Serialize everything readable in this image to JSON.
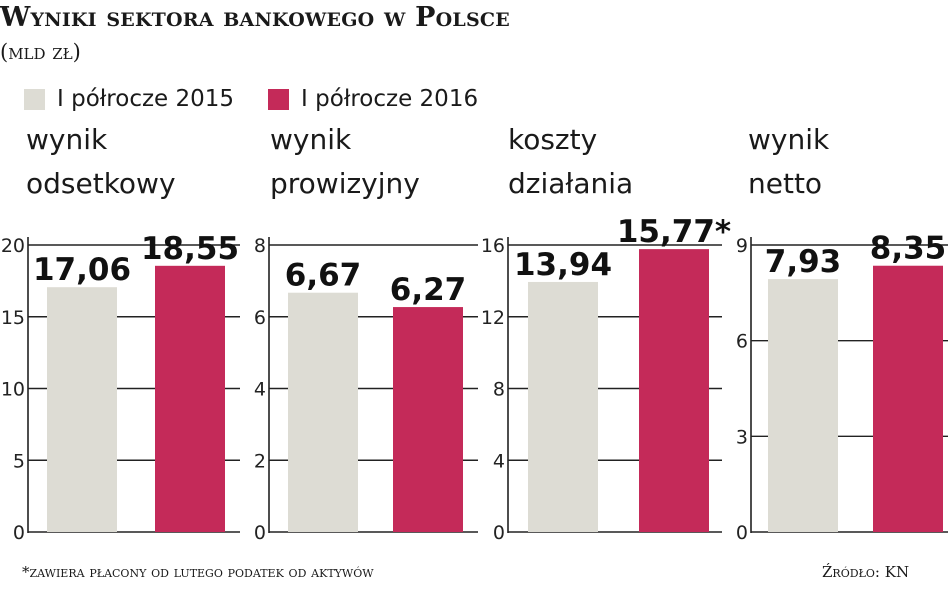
{
  "header": {
    "title": "Wyniki sektora bankowego w Polsce",
    "subtitle": "(mld zł)"
  },
  "legend": [
    {
      "label": "I półrocze 2015",
      "color": "#dddcd4"
    },
    {
      "label": "I półrocze 2016",
      "color": "#c42a59"
    }
  ],
  "colors": {
    "axis": "#222222",
    "tick_text": "#222222"
  },
  "chart_data": [
    {
      "type": "bar",
      "title_lines": [
        "wynik",
        "odsetkowy"
      ],
      "categories": [
        "I półrocze 2015",
        "I półrocze 2016"
      ],
      "values": [
        17.06,
        18.55
      ],
      "value_labels": [
        "17,06",
        "18,55"
      ],
      "ylim": [
        0,
        20
      ],
      "yticks": [
        0,
        5,
        10,
        15,
        20
      ]
    },
    {
      "type": "bar",
      "title_lines": [
        "wynik",
        "prowizyjny"
      ],
      "categories": [
        "I półrocze 2015",
        "I półrocze 2016"
      ],
      "values": [
        6.67,
        6.27
      ],
      "value_labels": [
        "6,67",
        "6,27"
      ],
      "ylim": [
        0,
        8
      ],
      "yticks": [
        0,
        2,
        4,
        6,
        8
      ]
    },
    {
      "type": "bar",
      "title_lines": [
        "koszty",
        "działania"
      ],
      "categories": [
        "I półrocze 2015",
        "I półrocze 2016"
      ],
      "values": [
        13.94,
        15.77
      ],
      "value_labels": [
        "13,94",
        "15,77*"
      ],
      "ylim": [
        0,
        16
      ],
      "yticks": [
        0,
        4,
        8,
        12,
        16
      ]
    },
    {
      "type": "bar",
      "title_lines": [
        "wynik",
        "netto"
      ],
      "categories": [
        "I półrocze 2015",
        "I półrocze 2016"
      ],
      "values": [
        7.93,
        8.35
      ],
      "value_labels": [
        "7,93",
        "8,35"
      ],
      "ylim": [
        0,
        9
      ],
      "yticks": [
        0,
        3,
        6,
        9
      ]
    }
  ],
  "footnote": "*zawiera płacony od lutego podatek od aktywów",
  "source": "Źródło: KN"
}
